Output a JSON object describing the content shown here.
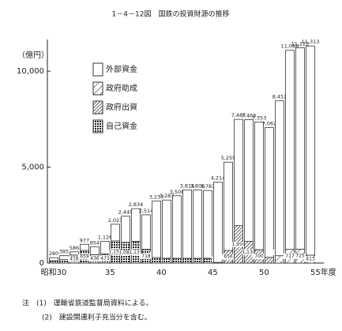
{
  "chart_data": {
    "type": "stacked_bar",
    "title": "1－4－12図　国鉄の投資財源の推移",
    "y_label": "（億円）",
    "categories": [
      "昭和30",
      null,
      null,
      null,
      null,
      "35",
      null,
      null,
      null,
      null,
      "40",
      null,
      null,
      null,
      null,
      "45",
      null,
      null,
      null,
      null,
      "50",
      null,
      null,
      null,
      null,
      "55年度"
    ],
    "ylim": [
      0,
      11650
    ],
    "yticks": [
      0,
      {
        "value": 5000,
        "label": "5,000"
      },
      {
        "value": 10000,
        "label": "10,000"
      }
    ],
    "series": [
      {
        "name": "自己資金",
        "pattern": "dots",
        "color": "#333",
        "values": [
          120,
          180,
          418,
          659,
          436,
          473,
          1156,
          1080,
          1131,
          718,
          289,
          250,
          250,
          250,
          250,
          250,
          0,
          0,
          0,
          0,
          0,
          0,
          0,
          0,
          0,
          0
        ],
        "value_labels": [
          null,
          null,
          "418",
          "659",
          "436",
          "473",
          "1,156",
          "1,080",
          "1,131",
          "718",
          "289",
          null,
          null,
          null,
          null,
          null,
          null,
          null,
          null,
          null,
          null,
          null,
          null,
          null,
          null,
          null
        ]
      },
      {
        "name": "政府出資",
        "pattern": "crosshatch",
        "color": "#333",
        "values": [
          0,
          0,
          0,
          0,
          0,
          0,
          0,
          0,
          0,
          0,
          0,
          0,
          0,
          0,
          0,
          0,
          35,
          656,
          1950,
          1130,
          700,
          300,
          0,
          0,
          0,
          0
        ],
        "value_labels": [
          null,
          null,
          null,
          null,
          null,
          null,
          null,
          null,
          null,
          null,
          null,
          null,
          null,
          null,
          null,
          null,
          "35",
          "656",
          "1,950",
          "1,130",
          "700",
          null,
          null,
          null,
          null,
          null
        ]
      },
      {
        "name": "政府助成",
        "pattern": "diagonal",
        "color": "#333",
        "values": [
          0,
          0,
          0,
          0,
          0,
          0,
          0,
          0,
          0,
          0,
          0,
          0,
          0,
          0,
          0,
          0,
          0,
          0,
          0,
          0,
          0,
          0,
          383,
          717,
          725,
          413
        ],
        "value_labels": [
          null,
          null,
          null,
          null,
          null,
          null,
          null,
          null,
          null,
          null,
          null,
          null,
          null,
          null,
          null,
          null,
          null,
          null,
          null,
          null,
          null,
          null,
          "383",
          "717",
          "725",
          "413"
        ]
      },
      {
        "name": "外部資金",
        "pattern": "none",
        "color": "#333",
        "values": [
          160,
          205,
          168,
          318,
          418,
          653,
          867,
          1360,
          1703,
          1796,
          2948,
          3033,
          3258,
          3564,
          3556,
          3533,
          4179,
          4603,
          5537,
          6338,
          6653,
          6762,
          8069,
          10371,
          10497,
          10900
        ]
      }
    ],
    "totals": [
      280,
      385,
      586,
      977,
      854,
      1126,
      2023,
      2440,
      2834,
      2514,
      3237,
      3283,
      3508,
      3814,
      3806,
      3783,
      4214,
      5259,
      7487,
      7468,
      7353,
      7062,
      8452,
      11088,
      11222,
      11313
    ],
    "totals_labels": [
      "280",
      "385",
      "586",
      "977",
      "854",
      "1,126",
      "2,023",
      "2,440",
      "2,834",
      "2,514",
      "3,237",
      "3,283",
      "3,508",
      "3,814",
      "3,806",
      "3,783",
      "4,214",
      "5,259",
      "7,487",
      "7,468",
      "7,353",
      "7,062",
      "8,452",
      "11,088",
      "11,222",
      "11,313"
    ],
    "notes": [
      "注　(1)　運輸省鉄道監督局資料による。",
      "(2)　建設関連利子充当分を含む。"
    ]
  }
}
